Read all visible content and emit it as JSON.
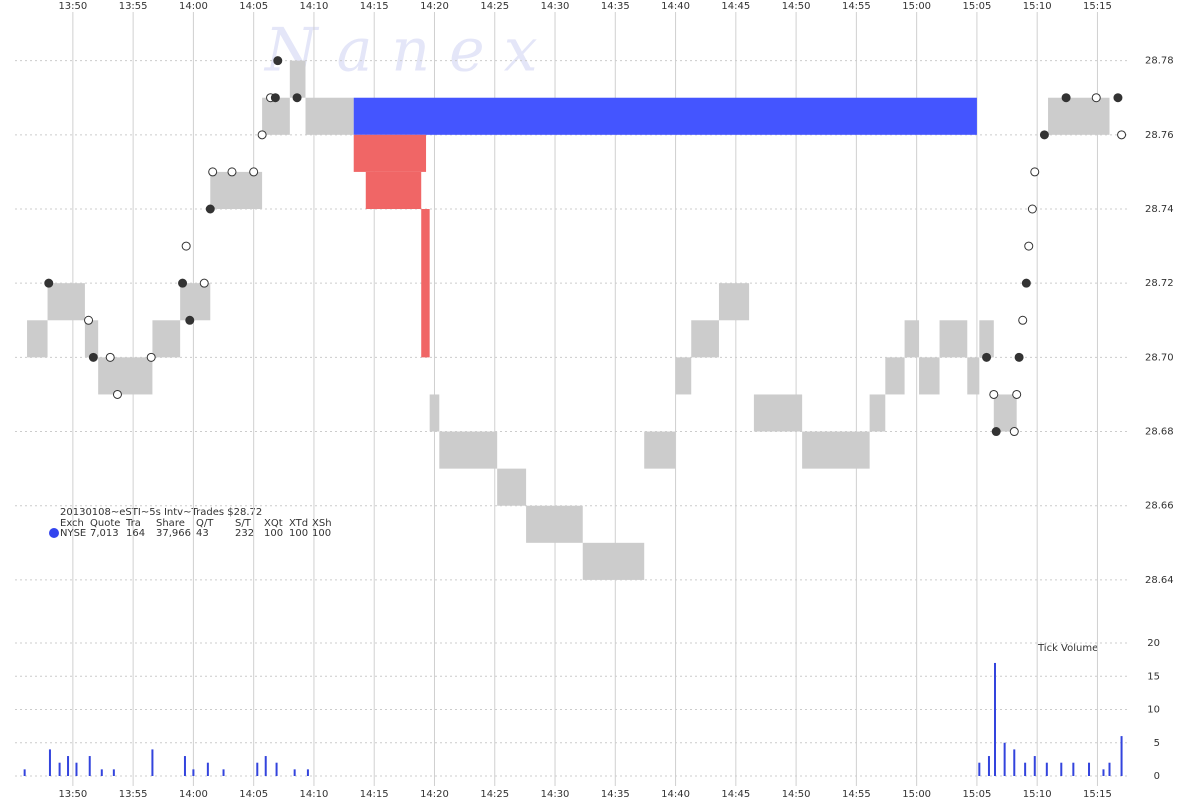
{
  "chart_data": {
    "type": "tick",
    "title": "20130108~eSTI~5s Intv~Trades $28.72",
    "watermark": "N a n e x",
    "xlim": [
      825.2,
      917.7
    ],
    "xticks": [
      {
        "value": 830,
        "label": "13:50"
      },
      {
        "value": 835,
        "label": "13:55"
      },
      {
        "value": 840,
        "label": "14:00"
      },
      {
        "value": 845,
        "label": "14:05"
      },
      {
        "value": 850,
        "label": "14:10"
      },
      {
        "value": 855,
        "label": "14:15"
      },
      {
        "value": 860,
        "label": "14:20"
      },
      {
        "value": 865,
        "label": "14:25"
      },
      {
        "value": 870,
        "label": "14:30"
      },
      {
        "value": 875,
        "label": "14:35"
      },
      {
        "value": 880,
        "label": "14:40"
      },
      {
        "value": 885,
        "label": "14:45"
      },
      {
        "value": 890,
        "label": "14:50"
      },
      {
        "value": 895,
        "label": "14:55"
      },
      {
        "value": 900,
        "label": "15:00"
      },
      {
        "value": 905,
        "label": "15:05"
      },
      {
        "value": 910,
        "label": "15:10"
      },
      {
        "value": 915,
        "label": "15:15"
      }
    ],
    "ylim": [
      28.63,
      28.795
    ],
    "yticks": [
      28.64,
      28.66,
      28.68,
      {
        "value": 28.7,
        "label": "28.70"
      },
      28.72,
      28.74,
      28.76,
      28.78
    ],
    "quote_color": "#cccccc",
    "quotes": [
      {
        "start": 826.2,
        "end": 827.9,
        "bid": 28.7,
        "ask": 28.71
      },
      {
        "start": 827.9,
        "end": 831.0,
        "bid": 28.71,
        "ask": 28.72
      },
      {
        "start": 831.0,
        "end": 832.1,
        "bid": 28.7,
        "ask": 28.71
      },
      {
        "start": 832.1,
        "end": 836.6,
        "bid": 28.69,
        "ask": 28.7
      },
      {
        "start": 836.6,
        "end": 838.9,
        "bid": 28.7,
        "ask": 28.71
      },
      {
        "start": 838.9,
        "end": 841.4,
        "bid": 28.71,
        "ask": 28.72
      },
      {
        "start": 841.4,
        "end": 845.7,
        "bid": 28.74,
        "ask": 28.75
      },
      {
        "start": 845.7,
        "end": 848.0,
        "bid": 28.76,
        "ask": 28.77
      },
      {
        "start": 848.0,
        "end": 849.3,
        "bid": 28.77,
        "ask": 28.78
      },
      {
        "start": 849.3,
        "end": 853.3,
        "bid": 28.76,
        "ask": 28.77
      },
      {
        "start": 859.6,
        "end": 860.4,
        "bid": 28.68,
        "ask": 28.69
      },
      {
        "start": 860.4,
        "end": 865.2,
        "bid": 28.67,
        "ask": 28.68
      },
      {
        "start": 865.2,
        "end": 867.6,
        "bid": 28.66,
        "ask": 28.67
      },
      {
        "start": 867.6,
        "end": 872.3,
        "bid": 28.65,
        "ask": 28.66
      },
      {
        "start": 872.3,
        "end": 877.4,
        "bid": 28.64,
        "ask": 28.65
      },
      {
        "start": 877.4,
        "end": 880.0,
        "bid": 28.67,
        "ask": 28.68
      },
      {
        "start": 880.0,
        "end": 881.3,
        "bid": 28.69,
        "ask": 28.7
      },
      {
        "start": 881.3,
        "end": 883.6,
        "bid": 28.7,
        "ask": 28.71
      },
      {
        "start": 883.6,
        "end": 886.1,
        "bid": 28.71,
        "ask": 28.72
      },
      {
        "start": 886.5,
        "end": 890.5,
        "bid": 28.68,
        "ask": 28.69
      },
      {
        "start": 890.5,
        "end": 896.1,
        "bid": 28.67,
        "ask": 28.68
      },
      {
        "start": 896.1,
        "end": 897.4,
        "bid": 28.68,
        "ask": 28.69
      },
      {
        "start": 897.4,
        "end": 899.0,
        "bid": 28.69,
        "ask": 28.7
      },
      {
        "start": 899.0,
        "end": 900.2,
        "bid": 28.7,
        "ask": 28.71
      },
      {
        "start": 900.2,
        "end": 901.9,
        "bid": 28.69,
        "ask": 28.7
      },
      {
        "start": 901.9,
        "end": 904.2,
        "bid": 28.7,
        "ask": 28.71
      },
      {
        "start": 904.2,
        "end": 905.2,
        "bid": 28.69,
        "ask": 28.7
      },
      {
        "start": 905.2,
        "end": 906.4,
        "bid": 28.7,
        "ask": 28.71
      },
      {
        "start": 906.4,
        "end": 908.3,
        "bid": 28.68,
        "ask": 28.69
      },
      {
        "start": 910.9,
        "end": 916.0,
        "bid": 28.76,
        "ask": 28.77
      }
    ],
    "ask_size_color": "#4455ff",
    "ask_size_blocks": [
      {
        "start": 853.3,
        "end": 905.0,
        "low": 28.76,
        "high": 28.77
      }
    ],
    "bid_size_color": "#f06666",
    "bid_size_blocks": [
      {
        "start": 853.3,
        "end": 859.3,
        "low": 28.75,
        "high": 28.76
      },
      {
        "start": 854.3,
        "end": 858.9,
        "low": 28.74,
        "high": 28.75
      },
      {
        "start": 858.9,
        "end": 859.6,
        "low": 28.7,
        "high": 28.74
      }
    ],
    "trades": {
      "x": [
        828.0,
        831.3,
        831.7,
        833.1,
        833.7,
        836.5,
        839.1,
        839.4,
        839.7,
        840.9,
        841.4,
        841.6,
        843.2,
        845.0,
        845.7,
        846.4,
        846.8,
        847.0,
        848.6,
        905.8,
        906.4,
        906.6,
        908.1,
        908.3,
        908.5,
        908.8,
        909.1,
        909.3,
        909.6,
        909.8,
        910.6,
        912.4,
        914.9,
        916.7,
        917.0
      ],
      "values": [
        28.72,
        28.71,
        28.7,
        28.7,
        28.69,
        28.7,
        28.72,
        28.73,
        28.71,
        28.72,
        28.74,
        28.75,
        28.75,
        28.75,
        28.76,
        28.77,
        28.77,
        28.78,
        28.77,
        28.7,
        28.69,
        28.68,
        28.68,
        28.69,
        28.7,
        28.71,
        28.72,
        28.73,
        28.74,
        28.75,
        28.76,
        28.77,
        28.77,
        28.77,
        28.76
      ],
      "colors": [
        "#333333",
        "#ffffff",
        "#333333",
        "#ffffff",
        "#ffffff",
        "#ffffff",
        "#333333",
        "#ffffff",
        "#333333",
        "#ffffff",
        "#333333",
        "#ffffff",
        "#ffffff",
        "#ffffff",
        "#ffffff",
        "#ffffff",
        "#333333",
        "#333333",
        "#333333",
        "#333333",
        "#ffffff",
        "#333333",
        "#ffffff",
        "#ffffff",
        "#333333",
        "#ffffff",
        "#333333",
        "#ffffff",
        "#ffffff",
        "#ffffff",
        "#333333",
        "#333333",
        "#ffffff",
        "#333333",
        "#ffffff"
      ]
    },
    "volume_label": "Tick Volume",
    "volume_ylim": [
      0,
      20
    ],
    "volume_yticks": [
      0,
      5,
      10,
      15,
      20
    ],
    "volume_color": "#3344dd",
    "volume": {
      "x": [
        826.0,
        828.1,
        828.9,
        829.6,
        830.3,
        831.4,
        832.4,
        833.4,
        836.6,
        839.3,
        840.0,
        841.2,
        842.5,
        845.3,
        846.0,
        846.9,
        848.4,
        849.5,
        905.2,
        906.0,
        906.5,
        907.3,
        908.1,
        909.0,
        909.8,
        910.8,
        912.0,
        913.0,
        914.3,
        915.5,
        916.0,
        917.0
      ],
      "values": [
        1,
        4,
        2,
        3,
        2,
        3,
        1,
        1,
        4,
        3,
        1,
        2,
        1,
        2,
        3,
        2,
        1,
        1,
        2,
        3,
        17,
        5,
        4,
        2,
        3,
        2,
        2,
        2,
        2,
        1,
        2,
        6
      ]
    },
    "stats": {
      "columns": [
        "Exch",
        "Quote",
        "Tra",
        "Share",
        "Q/T",
        "S/T",
        "XQt",
        "XTd",
        "XSh"
      ],
      "rows": [
        {
          "name": "NYSE",
          "color": "#3344ee",
          "values": [
            "7,013",
            "164",
            "37,966",
            "43",
            "232",
            "100",
            "100",
            "100"
          ]
        }
      ]
    }
  }
}
